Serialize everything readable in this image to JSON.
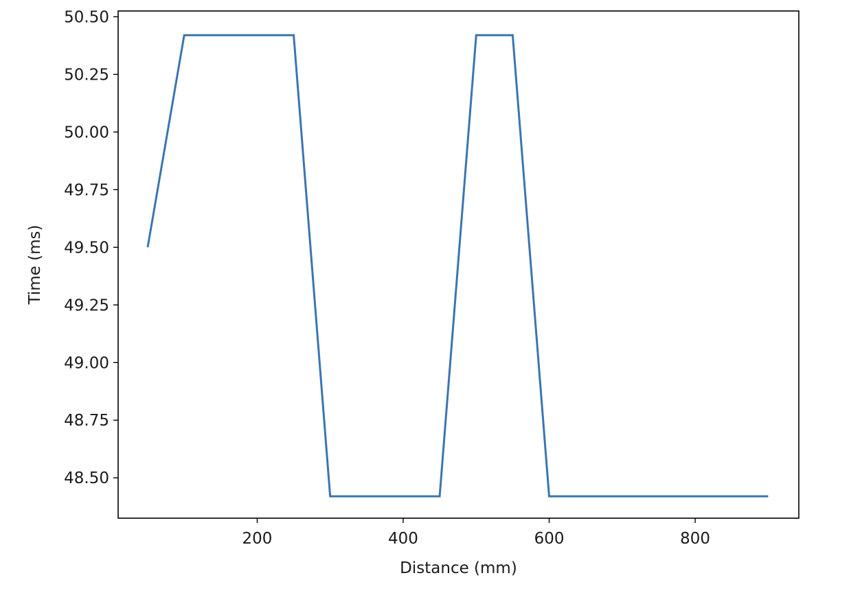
{
  "chart_data": {
    "type": "line",
    "title": "",
    "xlabel": "Distance (mm)",
    "ylabel": "Time (ms)",
    "xlim": [
      9.5,
      942
    ],
    "ylim": [
      48.325,
      50.525
    ],
    "grid": false,
    "xticks": [
      200,
      400,
      600,
      800
    ],
    "xtick_labels": [
      "200",
      "400",
      "600",
      "800"
    ],
    "yticks": [
      48.5,
      48.75,
      49.0,
      49.25,
      49.5,
      49.75,
      50.0,
      50.25,
      50.5
    ],
    "ytick_labels": [
      "48.50",
      "48.75",
      "49.00",
      "49.25",
      "49.50",
      "49.75",
      "50.00",
      "50.25",
      "50.50"
    ],
    "series": [
      {
        "color": "#3a75b0",
        "x": [
          50,
          100,
          150,
          200,
          250,
          300,
          350,
          400,
          450,
          500,
          550,
          600,
          650,
          700,
          750,
          800,
          850,
          900
        ],
        "y": [
          49.5,
          50.42,
          50.42,
          50.42,
          50.42,
          48.42,
          48.42,
          48.42,
          48.42,
          50.42,
          50.42,
          48.42,
          48.42,
          48.42,
          48.42,
          48.42,
          48.42,
          48.42
        ]
      }
    ]
  }
}
